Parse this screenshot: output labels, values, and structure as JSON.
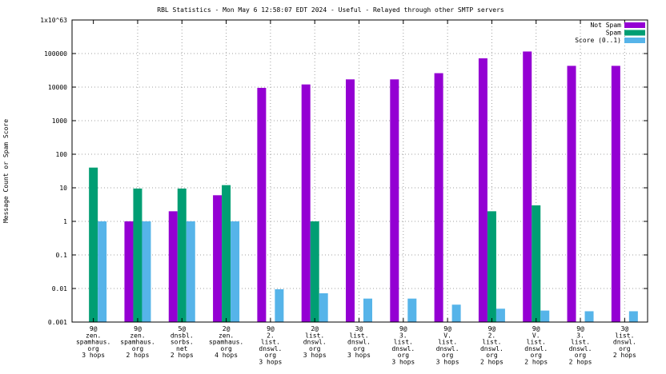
{
  "chart_data": {
    "type": "bar",
    "title": "RBL Statistics - Mon May  6 12:58:07 EDT 2024 - Useful - Relayed through other SMTP servers",
    "xlabel": "",
    "ylabel": "Message Count or Spam Score",
    "y_scale": "log",
    "ylim": [
      0.001,
      1000000
    ],
    "y_ticks": [
      "0.001",
      "0.01",
      "0.1",
      "1",
      "10",
      "100",
      "1000",
      "10000",
      "100000",
      "1x10^63"
    ],
    "grid": true,
    "legend_position": "top-right",
    "categories": [
      [
        "9@",
        "zen.",
        "spamhaus.",
        "org",
        "3 hops"
      ],
      [
        "9@",
        "zen.",
        "spamhaus.",
        "org",
        "2 hops"
      ],
      [
        "5@",
        "dnsbl.",
        "sorbs.",
        "net",
        "2 hops"
      ],
      [
        "2@",
        "zen.",
        "spamhaus.",
        "org",
        "4 hops"
      ],
      [
        "9@",
        "2.",
        "list.",
        "dnswl.",
        "org",
        "3 hops"
      ],
      [
        "2@",
        "list.",
        "dnswl.",
        "org",
        "3 hops"
      ],
      [
        "3@",
        "list.",
        "dnswl.",
        "org",
        "3 hops"
      ],
      [
        "9@",
        "3.",
        "list.",
        "dnswl.",
        "org",
        "3 hops"
      ],
      [
        "9@",
        "V.",
        "list.",
        "dnswl.",
        "org",
        "3 hops"
      ],
      [
        "9@",
        "2.",
        "list.",
        "dnswl.",
        "org",
        "2 hops"
      ],
      [
        "9@",
        "V.",
        "list.",
        "dnswl.",
        "org",
        "2 hops"
      ],
      [
        "9@",
        "3.",
        "list.",
        "dnswl.",
        "org",
        "2 hops"
      ],
      [
        "3@",
        "list.",
        "dnswl.",
        "org",
        "2 hops"
      ]
    ],
    "series": [
      {
        "name": "Not Spam",
        "color": "#9400d3",
        "values": [
          null,
          1,
          2,
          6,
          9500,
          12000,
          17000,
          17000,
          26000,
          72000,
          115000,
          43000,
          43000
        ]
      },
      {
        "name": "Spam",
        "color": "#009e73",
        "values": [
          40,
          9.5,
          9.5,
          12,
          null,
          1,
          null,
          null,
          null,
          2,
          3,
          null,
          null
        ]
      },
      {
        "name": "Score (0..1)",
        "color": "#56b4e9",
        "values": [
          1,
          1,
          1,
          1,
          0.0095,
          0.0072,
          0.005,
          0.005,
          0.0033,
          0.0025,
          0.0022,
          0.0021,
          0.0021
        ]
      }
    ]
  }
}
